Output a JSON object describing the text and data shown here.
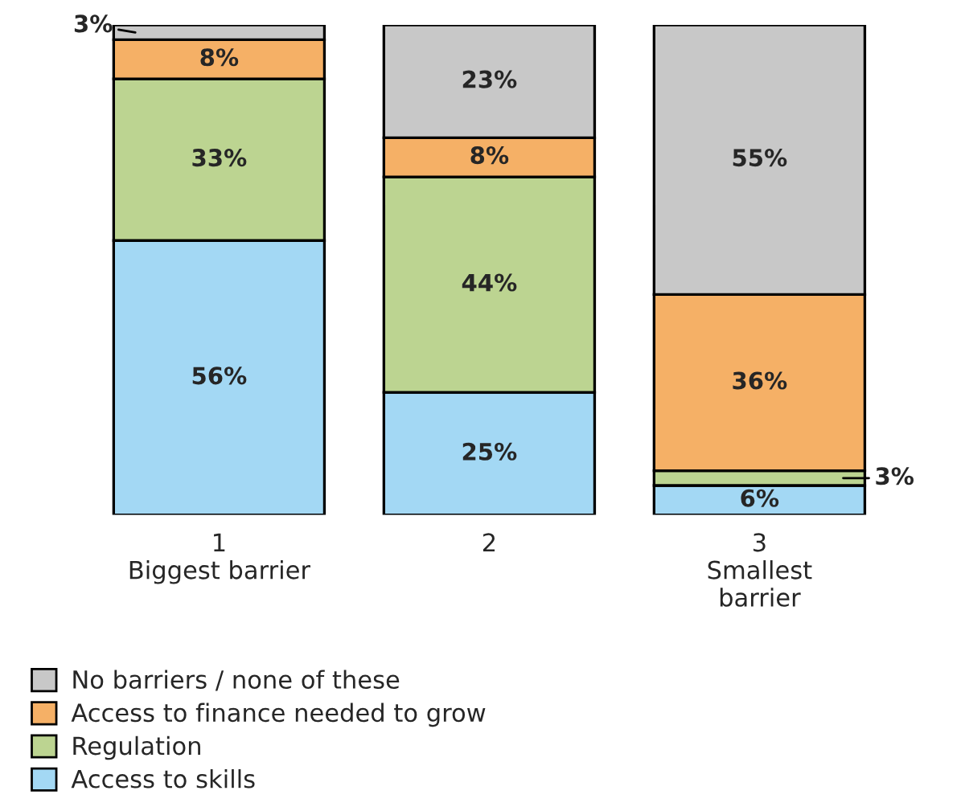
{
  "chart_data": {
    "type": "bar",
    "stacked": true,
    "legend": "bottom",
    "categories": [
      "1\nBiggest barrier",
      "2",
      "3\nSmallest\nbarrier"
    ],
    "series": [
      {
        "name": "Access to skills",
        "color": "#a3d8f4",
        "values": [
          56,
          25,
          6
        ],
        "value_labels": [
          "56%",
          "25%",
          "6%"
        ]
      },
      {
        "name": "Regulation",
        "color": "#bcd491",
        "values": [
          33,
          44,
          3
        ],
        "value_labels": [
          "33%",
          "44%",
          "3%"
        ]
      },
      {
        "name": "Access to finance needed to grow",
        "color": "#f5b066",
        "values": [
          8,
          8,
          36
        ],
        "value_labels": [
          "8%",
          "8%",
          "36%"
        ]
      },
      {
        "name": "No barriers / none of these",
        "color": "#c8c8c8",
        "values": [
          3,
          23,
          55
        ],
        "value_labels": [
          "3%",
          "23%",
          "55%"
        ]
      }
    ]
  }
}
